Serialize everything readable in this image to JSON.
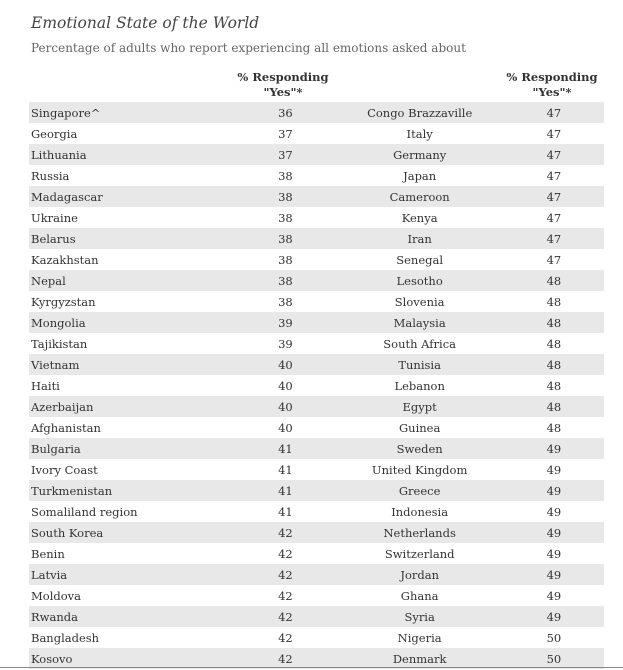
{
  "title": "Emotional State of the World",
  "subtitle": "Percentage of adults who report experiencing all emotions asked about",
  "header_left": "% Responding\n\"Yes\"*",
  "header_right": "% Responding\n\"Yes\"*",
  "rows": [
    {
      "country1": "Singapore^",
      "value1": "36",
      "country2": "Congo Brazzaville",
      "value2": "47"
    },
    {
      "country1": "Georgia",
      "value1": "37",
      "country2": "Italy",
      "value2": "47"
    },
    {
      "country1": "Lithuania",
      "value1": "37",
      "country2": "Germany",
      "value2": "47"
    },
    {
      "country1": "Russia",
      "value1": "38",
      "country2": "Japan",
      "value2": "47"
    },
    {
      "country1": "Madagascar",
      "value1": "38",
      "country2": "Cameroon",
      "value2": "47"
    },
    {
      "country1": "Ukraine",
      "value1": "38",
      "country2": "Kenya",
      "value2": "47"
    },
    {
      "country1": "Belarus",
      "value1": "38",
      "country2": "Iran",
      "value2": "47"
    },
    {
      "country1": "Kazakhstan",
      "value1": "38",
      "country2": "Senegal",
      "value2": "47"
    },
    {
      "country1": "Nepal",
      "value1": "38",
      "country2": "Lesotho",
      "value2": "48"
    },
    {
      "country1": "Kyrgyzstan",
      "value1": "38",
      "country2": "Slovenia",
      "value2": "48"
    },
    {
      "country1": "Mongolia",
      "value1": "39",
      "country2": "Malaysia",
      "value2": "48"
    },
    {
      "country1": "Tajikistan",
      "value1": "39",
      "country2": "South Africa",
      "value2": "48"
    },
    {
      "country1": "Vietnam",
      "value1": "40",
      "country2": "Tunisia",
      "value2": "48"
    },
    {
      "country1": "Haiti",
      "value1": "40",
      "country2": "Lebanon",
      "value2": "48"
    },
    {
      "country1": "Azerbaijan",
      "value1": "40",
      "country2": "Egypt",
      "value2": "48"
    },
    {
      "country1": "Afghanistan",
      "value1": "40",
      "country2": "Guinea",
      "value2": "48"
    },
    {
      "country1": "Bulgaria",
      "value1": "41",
      "country2": "Sweden",
      "value2": "49"
    },
    {
      "country1": "Ivory Coast",
      "value1": "41",
      "country2": "United Kingdom",
      "value2": "49"
    },
    {
      "country1": "Turkmenistan",
      "value1": "41",
      "country2": "Greece",
      "value2": "49"
    },
    {
      "country1": "Somaliland region",
      "value1": "41",
      "country2": "Indonesia",
      "value2": "49"
    },
    {
      "country1": "South Korea",
      "value1": "42",
      "country2": "Netherlands",
      "value2": "49"
    },
    {
      "country1": "Benin",
      "value1": "42",
      "country2": "Switzerland",
      "value2": "49"
    },
    {
      "country1": "Latvia",
      "value1": "42",
      "country2": "Jordan",
      "value2": "49"
    },
    {
      "country1": "Moldova",
      "value1": "42",
      "country2": "Ghana",
      "value2": "49"
    },
    {
      "country1": "Rwanda",
      "value1": "42",
      "country2": "Syria",
      "value2": "49"
    },
    {
      "country1": "Bangladesh",
      "value1": "42",
      "country2": "Nigeria",
      "value2": "50"
    },
    {
      "country1": "Kosovo",
      "value1": "42",
      "country2": "Denmark",
      "value2": "50"
    }
  ],
  "colors": {
    "stripe": "#e8e8e8",
    "text": "#333333",
    "subtitle": "#666666"
  }
}
